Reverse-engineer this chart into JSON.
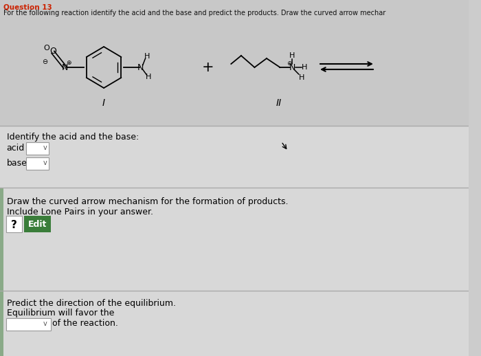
{
  "bg_top": "#cccccc",
  "bg_sections": "#d4d4d4",
  "bg_bottom": "#d0d0d0",
  "title_text": "Question 13",
  "header_text": "For the following reaction identify the acid and the base and predict the products. Draw the curved arrow mechar",
  "roman_I": "I",
  "roman_II": "II",
  "section1_label": "Identify the acid and the base:",
  "acid_label": "acid",
  "base_label": "base",
  "section2_label1": "Draw the curved arrow mechanism for the formation of products.",
  "section2_label2": "Include Lone Pairs in your answer.",
  "question_mark": "?",
  "edit_btn": "Edit",
  "edit_btn_color": "#3a7d3a",
  "section3_label1": "Predict the direction of the equilibrium.",
  "section3_label2": "Equilibrium will favor the",
  "section3_label3": "of the reaction.",
  "red_title": "#cc2200",
  "dark_text": "#111111",
  "white": "#ffffff",
  "divider": "#aaaaaa",
  "left_bar": "#8aaa88"
}
